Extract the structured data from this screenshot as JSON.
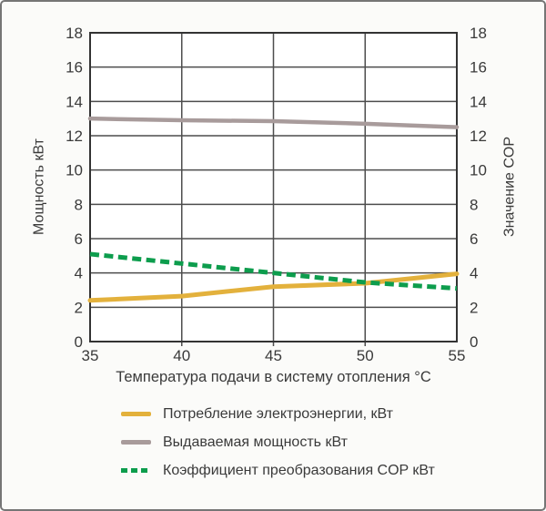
{
  "chart_data": {
    "type": "line",
    "x": [
      35,
      40,
      45,
      50,
      55
    ],
    "series": [
      {
        "id": "consumption",
        "name": "Потребление электроэнергии, кВт",
        "values": [
          2.4,
          2.65,
          3.2,
          3.4,
          3.95
        ],
        "color": "#e3b13c",
        "dash": false
      },
      {
        "id": "output-power",
        "name": "Выдаваемая мощность кВт",
        "values": [
          13.0,
          12.9,
          12.85,
          12.7,
          12.5
        ],
        "color": "#a89b9b",
        "dash": false
      },
      {
        "id": "cop",
        "name": "Коэффициент преобразования COP кВт",
        "values": [
          5.1,
          4.55,
          4.0,
          3.45,
          3.1
        ],
        "color": "#0d9d4d",
        "dash": true
      }
    ],
    "xlabel": "Температура подачи в систему отопления °C",
    "ylabel_left": "Мощность кВт",
    "ylabel_right": "Значение COP",
    "xticks": [
      35,
      40,
      45,
      50,
      55
    ],
    "yticks": [
      0,
      2,
      4,
      6,
      8,
      10,
      12,
      14,
      16,
      18
    ],
    "xlim": [
      35,
      55
    ],
    "ylim": [
      0,
      18
    ],
    "grid": true,
    "legend_position": "bottom-left"
  },
  "colors": {
    "grid": "#4d4d4d",
    "axis": "#333333",
    "text": "#3a3a3a",
    "plot_background": "#ffffff",
    "page_background": "#fbfbf9",
    "frame_border": "#757575"
  }
}
